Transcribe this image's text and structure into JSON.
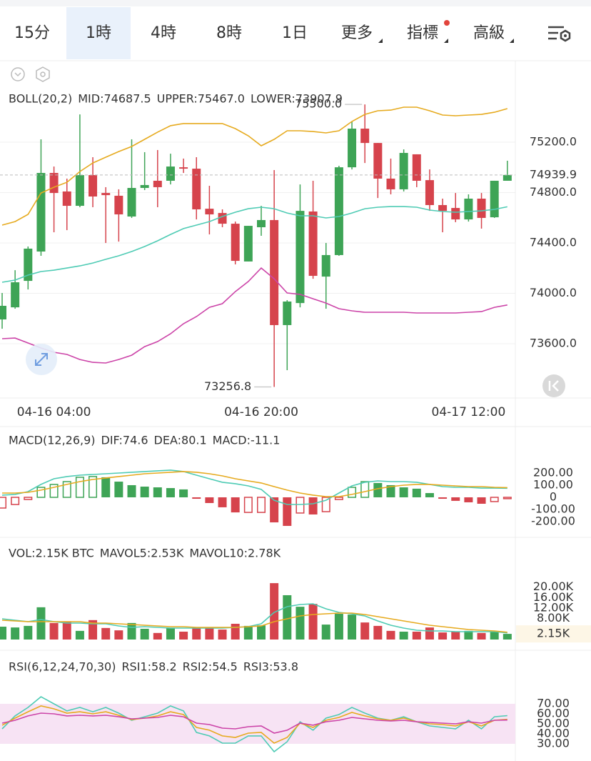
{
  "tabs": [
    "15分",
    "1時",
    "4時",
    "8時",
    "1日",
    "更多",
    "指標",
    "高級"
  ],
  "active_tab": 1,
  "chart_data": [
    {
      "type": "candlestick",
      "title": "BOLL(20,2)",
      "categories": [
        null,
        null,
        null,
        null,
        "04-16 04:00",
        null,
        null,
        null,
        null,
        null,
        null,
        null,
        null,
        null,
        null,
        null,
        null,
        null,
        null,
        null,
        "04-16 20:00",
        null,
        null,
        null,
        null,
        null,
        null,
        null,
        null,
        null,
        null,
        null,
        null,
        null,
        null,
        null,
        "04-17 12:00",
        null,
        null,
        null
      ],
      "open": [
        73793,
        73889,
        74099,
        74332,
        74956,
        74809,
        74695,
        74939,
        74797,
        74775,
        74610,
        74837,
        74894,
        74894,
        75001,
        74990,
        74672,
        74638,
        74553,
        74253,
        74525,
        74582,
        73748,
        73923,
        74650,
        74133,
        74304,
        75001,
        75308,
        75194,
        74911,
        74826,
        75104,
        74899,
        74701,
        74678,
        74587,
        74752,
        74604,
        74894
      ],
      "high": [
        74003,
        74184,
        74372,
        75223,
        75007,
        74911,
        75421,
        75081,
        74843,
        74826,
        75223,
        75121,
        75138,
        75109,
        75070,
        75081,
        74854,
        74667,
        74570,
        74536,
        74695,
        74979,
        73946,
        74865,
        74894,
        74400,
        75013,
        75365,
        75500,
        75194,
        75070,
        75143,
        75104,
        74984,
        74752,
        74797,
        74786,
        74797,
        74894,
        75053
      ],
      "low": [
        73719,
        73878,
        74031,
        74298,
        74485,
        74502,
        74684,
        74684,
        74400,
        74411,
        74599,
        74820,
        74684,
        74865,
        74956,
        74587,
        74468,
        74525,
        74230,
        74253,
        74457,
        73256.8,
        73390,
        73889,
        74116,
        73878,
        74298,
        74984,
        75035,
        74757,
        74786,
        74809,
        74843,
        74655,
        74485,
        74565,
        74570,
        74514,
        74599,
        74894
      ],
      "close": [
        73901,
        74088,
        74355,
        74956,
        74797,
        74695,
        74939,
        74769,
        74780,
        74627,
        74837,
        74860,
        74843,
        75007,
        74990,
        74667,
        74627,
        74553,
        74258,
        74536,
        74582,
        73748,
        73935,
        74655,
        74139,
        74304,
        75001,
        75308,
        75194,
        74911,
        74826,
        75115,
        74894,
        74701,
        74655,
        74587,
        74752,
        74599,
        74894,
        74939.9
      ],
      "up_color": "#3ea456",
      "down_color": "#d6434c",
      "series": [
        {
          "name": "MID:74687.5",
          "color": "#4ecbb4",
          "values": [
            74088,
            74105,
            74145,
            74173,
            74184,
            74201,
            74218,
            74241,
            74270,
            74298,
            74332,
            74372,
            74417,
            74468,
            74514,
            74542,
            74570,
            74610,
            74644,
            74672,
            74684,
            74672,
            74638,
            74616,
            74616,
            74599,
            74610,
            74638,
            74672,
            74684,
            74689,
            74689,
            74684,
            74661,
            74650,
            74644,
            74650,
            74655,
            74667,
            74687.5
          ]
        },
        {
          "name": "UPPER:75467.0",
          "color": "#e6aa1e",
          "values": [
            74542,
            74570,
            74627,
            74797,
            74843,
            74882,
            74967,
            75035,
            75081,
            75126,
            75166,
            75223,
            75280,
            75331,
            75348,
            75348,
            75348,
            75348,
            75308,
            75251,
            75172,
            75223,
            75291,
            75291,
            75285,
            75274,
            75291,
            75365,
            75421,
            75450,
            75455,
            75478,
            75478,
            75450,
            75416,
            75410,
            75416,
            75421,
            75438,
            75467
          ]
        },
        {
          "name": "LOWER:73907.9",
          "color": "#cc44a8",
          "values": [
            73640,
            73645,
            73606,
            73566,
            73532,
            73515,
            73475,
            73452,
            73447,
            73475,
            73509,
            73577,
            73617,
            73679,
            73759,
            73816,
            73889,
            73918,
            74014,
            74094,
            74201,
            74116,
            74003,
            73992,
            73957,
            73923,
            73878,
            73861,
            73850,
            73850,
            73850,
            73850,
            73844,
            73844,
            73844,
            73844,
            73850,
            73855,
            73889,
            73907.9
          ]
        }
      ],
      "ylim": [
        73169,
        75847
      ],
      "yticks": [
        {
          "value": 73600,
          "label": "73600.0"
        },
        {
          "value": 74000,
          "label": "74000.0"
        },
        {
          "value": 74400,
          "label": "74400.0"
        },
        {
          "value": 74800,
          "label": "74800.0"
        },
        {
          "value": 75200,
          "label": "75200.0"
        }
      ],
      "grid": true,
      "last_price": 74939.9,
      "last_price_color": "#3ea456",
      "high_label": {
        "value": 75500,
        "label": "75500.0"
      },
      "low_label": 73256.8
    },
    {
      "type": "macd",
      "title": "MACD(12,26,9)",
      "series": [
        {
          "name": "DIF:74.6",
          "color": "#4ecbb4",
          "values": [
            18,
            24,
            47,
            106,
            153,
            171,
            182,
            188,
            194,
            200,
            206,
            212,
            218,
            224,
            212,
            182,
            153,
            124,
            112,
            94,
            65,
            -24,
            -59,
            -59,
            -53,
            -24,
            35,
            94,
            124,
            135,
            129,
            129,
            124,
            106,
            88,
            82,
            82,
            76,
            76,
            74.6
          ]
        },
        {
          "name": "DEA:80.1",
          "color": "#e6aa1e",
          "values": [
            35,
            35,
            41,
            59,
            82,
            106,
            129,
            147,
            159,
            171,
            182,
            194,
            200,
            206,
            212,
            206,
            194,
            176,
            153,
            135,
            118,
            88,
            59,
            35,
            18,
            6,
            6,
            24,
            47,
            71,
            88,
            100,
            106,
            106,
            100,
            94,
            88,
            88,
            82,
            80.1
          ]
        }
      ],
      "histogram": {
        "name": "MACD:-11.1",
        "color": "#cc44a8",
        "values": [
          -88,
          -59,
          -18,
          82,
          106,
          129,
          165,
          171,
          165,
          129,
          100,
          88,
          82,
          76,
          65,
          -12,
          -47,
          -82,
          -124,
          -124,
          -124,
          -206,
          -235,
          -129,
          -141,
          -118,
          -18,
          82,
          129,
          118,
          100,
          82,
          71,
          35,
          -12,
          -29,
          -41,
          -53,
          -35,
          -11.1
        ]
      },
      "up_color": "#3ea456",
      "down_color": "#d6434c",
      "ylim": [
        -288,
        329
      ],
      "yticks": [
        {
          "value": 200,
          "label": "200.00"
        },
        {
          "value": 100,
          "label": "100.00"
        },
        0,
        {
          "value": -100,
          "label": "-100.00"
        },
        {
          "value": -200,
          "label": "-200.00"
        }
      ]
    },
    {
      "type": "volume",
      "title": "VOL:2.15K BTC",
      "values": [
        4900,
        4600,
        5200,
        12300,
        6300,
        6800,
        3300,
        7400,
        4400,
        3500,
        6300,
        4100,
        2500,
        4400,
        3000,
        4400,
        4600,
        3800,
        6000,
        5200,
        5400,
        21500,
        16900,
        12500,
        13600,
        5700,
        9800,
        9500,
        6500,
        5200,
        3300,
        3000,
        3000,
        4600,
        2700,
        3000,
        3300,
        2500,
        3000,
        2150
      ],
      "current_label": "2.15K",
      "series": [
        {
          "name": "MAVOL5:2.53K",
          "color": "#4ecbb4",
          "values": [
            7900,
            7360,
            6810,
            7630,
            6810,
            6270,
            6270,
            6000,
            6000,
            5180,
            4630,
            4900,
            4630,
            4360,
            4360,
            4360,
            4360,
            4360,
            4630,
            4900,
            6000,
            10350,
            12540,
            13350,
            13630,
            11720,
            10350,
            9810,
            8990,
            7090,
            5450,
            4360,
            3540,
            3270,
            3270,
            3000,
            3000,
            3000,
            3000,
            2530
          ]
        },
        {
          "name": "MAVOL10:2.78K",
          "color": "#e6aa1e",
          "values": [
            7360,
            7090,
            6810,
            6810,
            6810,
            6810,
            6810,
            6270,
            6270,
            6000,
            5720,
            5450,
            5180,
            4900,
            4900,
            4630,
            4630,
            4630,
            4630,
            4900,
            5180,
            6810,
            7900,
            8990,
            9540,
            9810,
            10080,
            10080,
            9540,
            8720,
            7900,
            7090,
            6270,
            5450,
            4900,
            4360,
            3820,
            3540,
            3270,
            2780
          ]
        }
      ],
      "ylim": [
        0,
        23160
      ],
      "yticks": [
        {
          "value": 8000,
          "label": "8.00K"
        },
        {
          "value": 12000,
          "label": "12.00K"
        },
        {
          "value": 16000,
          "label": "16.00K"
        },
        {
          "value": 20000,
          "label": "20.00K"
        }
      ]
    },
    {
      "type": "line",
      "title": "RSI(6,12,24,70,30)",
      "series": [
        {
          "name": "RSI1:58.2",
          "color": "#4ecbb4",
          "values": [
            45,
            57.9,
            66.4,
            77.1,
            70,
            62.9,
            66.4,
            62.1,
            66.4,
            60.7,
            53.6,
            57.1,
            60.7,
            67.9,
            62.9,
            41.4,
            37.9,
            30.7,
            30.7,
            37.9,
            37.9,
            22.1,
            32.1,
            52.1,
            43.6,
            55.7,
            59.3,
            66.4,
            60.7,
            55.7,
            53.6,
            57.1,
            52.1,
            47.9,
            46.4,
            45,
            53.6,
            45,
            57.1,
            58.2
          ]
        },
        {
          "name": "RSI2:54.5",
          "color": "#e6aa1e",
          "values": [
            48.6,
            55.7,
            62.1,
            67.9,
            65,
            60.7,
            62.1,
            60,
            62.1,
            58.6,
            54.3,
            55.7,
            57.9,
            62.1,
            59.3,
            46.4,
            43.6,
            37.9,
            36.4,
            40.7,
            41.4,
            30.7,
            36.4,
            50.7,
            46.4,
            53.6,
            56.4,
            61.4,
            57.9,
            55,
            53.6,
            55.7,
            52.1,
            50,
            49.3,
            47.9,
            52.1,
            47.9,
            53.6,
            54.5
          ]
        },
        {
          "name": "RSI3:53.8",
          "color": "#cc44a8",
          "values": [
            50.7,
            53.6,
            57.9,
            60.7,
            60,
            57.9,
            58.6,
            57.9,
            58.6,
            57.1,
            55,
            55.7,
            56.4,
            58.6,
            57.1,
            50.7,
            49.3,
            45.7,
            45,
            47.1,
            47.9,
            40.7,
            43.6,
            50.7,
            48.6,
            52.1,
            53.6,
            56.4,
            55,
            53.6,
            52.9,
            53.6,
            52.1,
            51.4,
            50.7,
            50,
            52.1,
            50.7,
            53.6,
            53.8
          ]
        }
      ],
      "band": [
        30,
        70
      ],
      "band_color": "#f7e3f4",
      "ylim": [
        16.4,
        84.3
      ],
      "yticks": [
        {
          "value": 70,
          "label": "70.00"
        },
        {
          "value": 60,
          "label": "60.00"
        },
        {
          "value": 50,
          "label": "50.00"
        },
        {
          "value": 40,
          "label": "40.00"
        },
        {
          "value": 30,
          "label": "30.00"
        }
      ]
    }
  ]
}
